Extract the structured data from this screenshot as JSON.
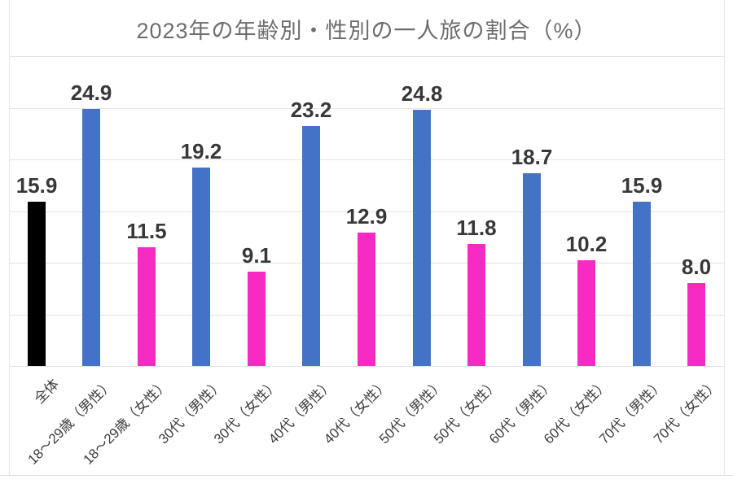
{
  "chart_data": {
    "type": "bar",
    "title": "2023年の年齢別・性別の一人旅の割合（%）",
    "categories": [
      "全体",
      "18～29歳（男性）",
      "18～29歳（女性）",
      "30代（男性）",
      "30代（女性）",
      "40代（男性）",
      "40代（女性）",
      "50代（男性）",
      "50代（女性）",
      "60代（男性）",
      "60代（女性）",
      "70代（男性）",
      "70代（女性）"
    ],
    "values": [
      15.9,
      24.9,
      11.5,
      19.2,
      9.1,
      23.2,
      12.9,
      24.8,
      11.8,
      18.7,
      10.2,
      15.9,
      8.0
    ],
    "value_labels": [
      "15.9",
      "24.9",
      "11.5",
      "19.2",
      "9.1",
      "23.2",
      "12.9",
      "24.8",
      "11.8",
      "18.7",
      "10.2",
      "15.9",
      "8.0"
    ],
    "bar_colors": [
      "#000000",
      "#4472c4",
      "#f72bc4",
      "#4472c4",
      "#f72bc4",
      "#4472c4",
      "#f72bc4",
      "#4472c4",
      "#f72bc4",
      "#4472c4",
      "#f72bc4",
      "#4472c4",
      "#f72bc4"
    ],
    "series_colors": {
      "overall": "#000000",
      "male": "#4472c4",
      "female": "#f72bc4"
    },
    "ylim": [
      0,
      30
    ],
    "gridline_step": 5,
    "grid": true,
    "legend": "none",
    "y_axis_labels_visible": false
  }
}
